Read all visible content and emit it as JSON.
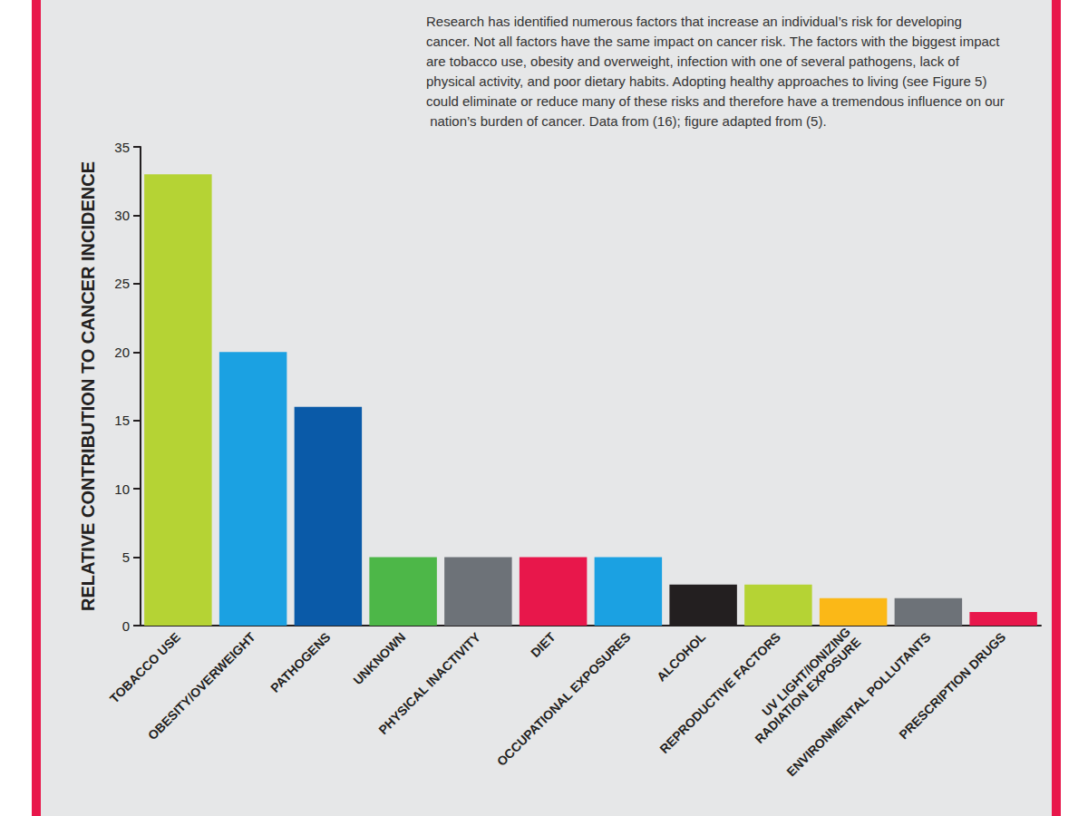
{
  "chart_data": {
    "type": "bar",
    "y_label": "RELATIVE CONTRIBUTION TO CANCER INCIDENCE",
    "annotation": "Research has identified numerous factors that increase an individual’s risk for developing cancer. Not all factors have the same impact on cancer risk. The factors with the biggest impact are tobacco use, obesity and overweight, infection with one of several pathogens, lack of physical activity, and poor dietary habits. Adopting healthy approaches to living (see Figure 5) could eliminate or reduce many of these risks and therefore have a tremendous influence on our nation’s burden of cancer. Data from (16); figure adapted from (5).",
    "categories": [
      "TOBACCO USE",
      "OBESITY/OVERWEIGHT",
      "PATHOGENS",
      "UNKNOWN",
      "PHYSICAL INACTIVITY",
      "DIET",
      "OCCUPATIONAL EXPOSURES",
      "ALCOHOL",
      "REPRODUCTIVE FACTORS",
      "UV LIGHT/IONIZING RADIATION EXPOSURE",
      "ENVIRONMENTAL POLLUTANTS",
      "PRESCRIPTION DRUGS"
    ],
    "values": [
      33,
      20,
      16,
      5,
      5,
      5,
      5,
      3,
      3,
      2,
      2,
      1
    ],
    "colors": [
      "#b5d334",
      "#1ba1e2",
      "#0a5aa8",
      "#4db748",
      "#6d7278",
      "#e8174b",
      "#1ba1e2",
      "#231f20",
      "#b5d334",
      "#fbb817",
      "#6d7278",
      "#e8174b"
    ],
    "ylim": [
      0,
      35
    ],
    "yticks": [
      0,
      5,
      10,
      15,
      20,
      25,
      30,
      35
    ],
    "grid": false
  }
}
